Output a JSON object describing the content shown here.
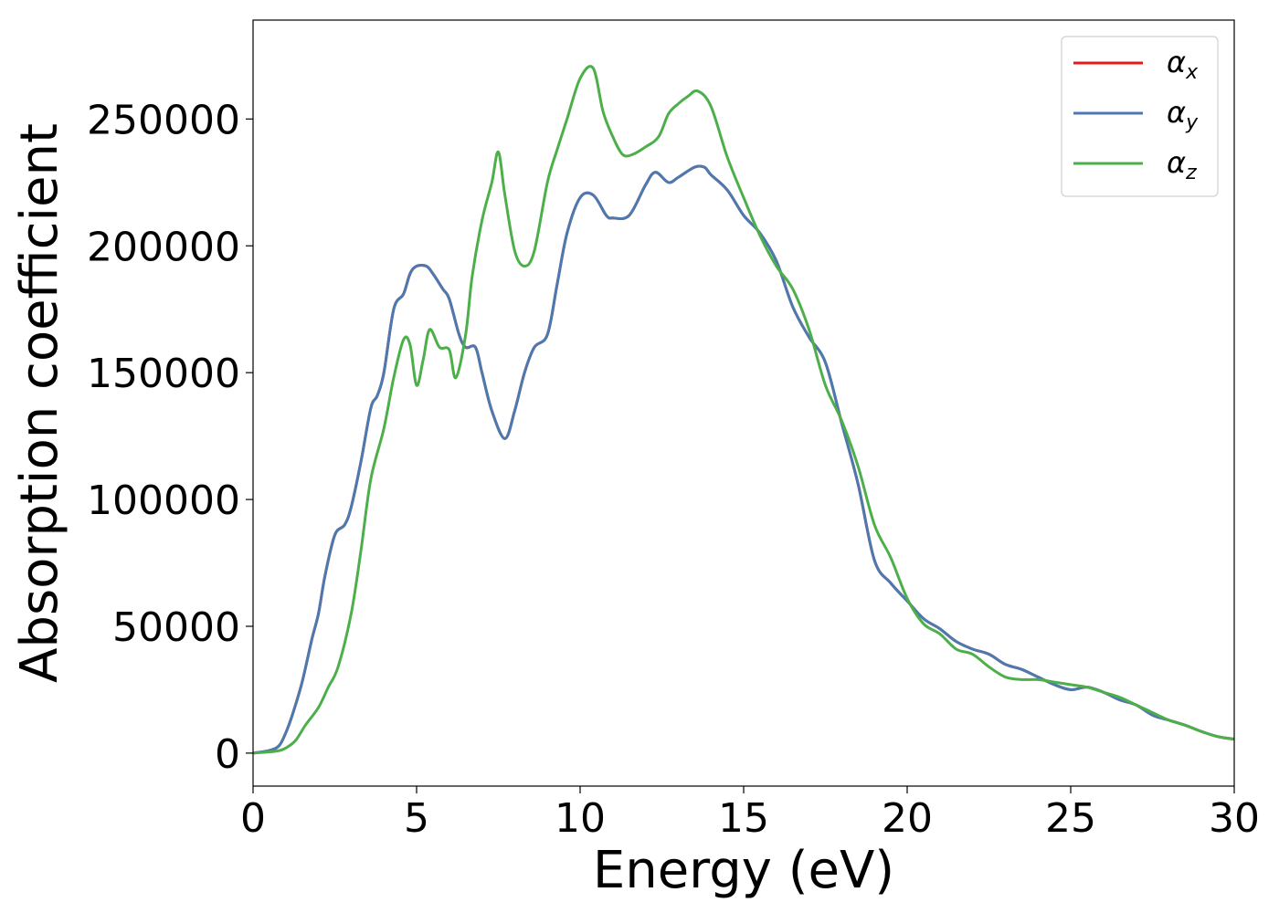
{
  "chart_data": {
    "type": "line",
    "title": "",
    "xlabel": "Energy (eV)",
    "ylabel": "Absorption coefficient",
    "xlim": [
      0,
      30
    ],
    "ylim": [
      -13000,
      289000
    ],
    "xticks": [
      0,
      5,
      10,
      15,
      20,
      25,
      30
    ],
    "xtick_labels": [
      "0",
      "5",
      "10",
      "15",
      "20",
      "25",
      "30"
    ],
    "yticks": [
      0,
      50000,
      100000,
      150000,
      200000,
      250000
    ],
    "ytick_labels": [
      "0",
      "50000",
      "100000",
      "150000",
      "200000",
      "250000"
    ],
    "grid": false,
    "legend_position": "top-right",
    "series": [
      {
        "name": "α",
        "subscript": "x",
        "color": "#e41a1c",
        "x": [
          0,
          0.5,
          0.8,
          1.0,
          1.2,
          1.5,
          1.8,
          2.0,
          2.2,
          2.5,
          2.8,
          3.0,
          3.3,
          3.6,
          3.8,
          4.0,
          4.3,
          4.6,
          4.8,
          5.0,
          5.3,
          5.5,
          5.8,
          6.0,
          6.3,
          6.5,
          6.8,
          7.0,
          7.3,
          7.7,
          8.0,
          8.3,
          8.6,
          9.0,
          9.3,
          9.6,
          10.0,
          10.4,
          10.8,
          11.0,
          11.5,
          12.0,
          12.3,
          12.7,
          13.0,
          13.5,
          13.8,
          14.0,
          14.5,
          15.0,
          15.5,
          16.0,
          16.5,
          17.0,
          17.5,
          18.0,
          18.5,
          19.0,
          19.5,
          20.0,
          20.5,
          21.0,
          21.5,
          22.0,
          22.5,
          23.0,
          23.5,
          24.0,
          24.5,
          25.0,
          25.5,
          26.0,
          26.5,
          27.0,
          27.5,
          28.0,
          28.5,
          29.0,
          29.5,
          30.0
        ],
        "y": [
          0,
          1000,
          3000,
          8000,
          15000,
          28000,
          45000,
          55000,
          70000,
          86000,
          90000,
          97000,
          115000,
          136000,
          141000,
          150000,
          175000,
          181000,
          189000,
          192000,
          192000,
          189000,
          183000,
          179000,
          165000,
          160000,
          160000,
          150000,
          135000,
          124000,
          135000,
          150000,
          160000,
          165000,
          185000,
          205000,
          219000,
          220000,
          212000,
          211000,
          212000,
          224000,
          229000,
          225000,
          227000,
          231000,
          231000,
          228000,
          222000,
          212000,
          205000,
          194000,
          176000,
          164000,
          154000,
          130000,
          106000,
          76000,
          67000,
          60000,
          53000,
          49000,
          44000,
          41000,
          39000,
          35000,
          33000,
          30000,
          27000,
          25000,
          26000,
          24000,
          21000,
          19000,
          15000,
          13000,
          11000,
          8500,
          6500,
          5500
        ]
      },
      {
        "name": "α",
        "subscript": "y",
        "color": "#4a7ab0",
        "x": [
          0,
          0.5,
          0.8,
          1.0,
          1.2,
          1.5,
          1.8,
          2.0,
          2.2,
          2.5,
          2.8,
          3.0,
          3.3,
          3.6,
          3.8,
          4.0,
          4.3,
          4.6,
          4.8,
          5.0,
          5.3,
          5.5,
          5.8,
          6.0,
          6.3,
          6.5,
          6.8,
          7.0,
          7.3,
          7.7,
          8.0,
          8.3,
          8.6,
          9.0,
          9.3,
          9.6,
          10.0,
          10.4,
          10.8,
          11.0,
          11.5,
          12.0,
          12.3,
          12.7,
          13.0,
          13.5,
          13.8,
          14.0,
          14.5,
          15.0,
          15.5,
          16.0,
          16.5,
          17.0,
          17.5,
          18.0,
          18.5,
          19.0,
          19.5,
          20.0,
          20.5,
          21.0,
          21.5,
          22.0,
          22.5,
          23.0,
          23.5,
          24.0,
          24.5,
          25.0,
          25.5,
          26.0,
          26.5,
          27.0,
          27.5,
          28.0,
          28.5,
          29.0,
          29.5,
          30.0
        ],
        "y": [
          0,
          1000,
          3000,
          8000,
          15000,
          28000,
          45000,
          55000,
          70000,
          86000,
          90000,
          97000,
          115000,
          136000,
          141000,
          150000,
          175000,
          181000,
          189000,
          192000,
          192000,
          189000,
          183000,
          179000,
          165000,
          160000,
          160000,
          150000,
          135000,
          124000,
          135000,
          150000,
          160000,
          165000,
          185000,
          205000,
          219000,
          220000,
          212000,
          211000,
          212000,
          224000,
          229000,
          225000,
          227000,
          231000,
          231000,
          228000,
          222000,
          212000,
          205000,
          194000,
          176000,
          164000,
          154000,
          130000,
          106000,
          76000,
          67000,
          60000,
          53000,
          49000,
          44000,
          41000,
          39000,
          35000,
          33000,
          30000,
          27000,
          25000,
          26000,
          24000,
          21000,
          19000,
          15000,
          13000,
          11000,
          8500,
          6500,
          5500
        ]
      },
      {
        "name": "α",
        "subscript": "z",
        "color": "#4daf4a",
        "x": [
          0,
          0.5,
          0.8,
          1.0,
          1.3,
          1.6,
          2.0,
          2.3,
          2.6,
          3.0,
          3.3,
          3.6,
          4.0,
          4.3,
          4.6,
          4.8,
          5.0,
          5.2,
          5.4,
          5.7,
          6.0,
          6.2,
          6.5,
          6.7,
          7.0,
          7.3,
          7.5,
          7.7,
          8.0,
          8.3,
          8.6,
          9.0,
          9.3,
          9.6,
          10.0,
          10.4,
          10.7,
          11.0,
          11.3,
          11.6,
          12.0,
          12.4,
          12.7,
          13.0,
          13.3,
          13.6,
          14.0,
          14.5,
          15.0,
          15.5,
          16.0,
          16.5,
          17.0,
          17.5,
          18.0,
          18.5,
          19.0,
          19.5,
          20.0,
          20.5,
          21.0,
          21.5,
          22.0,
          22.5,
          23.0,
          23.5,
          24.0,
          24.5,
          25.0,
          25.5,
          26.0,
          26.5,
          27.0,
          27.5,
          28.0,
          28.5,
          29.0,
          29.5,
          30.0
        ],
        "y": [
          0,
          500,
          1000,
          2000,
          5000,
          11000,
          18000,
          26000,
          34000,
          55000,
          80000,
          108000,
          128000,
          148000,
          163000,
          161000,
          145000,
          155000,
          167000,
          160000,
          159000,
          148000,
          165000,
          188000,
          210000,
          225000,
          237000,
          220000,
          198000,
          192000,
          198000,
          225000,
          238000,
          250000,
          266000,
          270000,
          253000,
          243000,
          236000,
          236000,
          239000,
          243000,
          252000,
          256000,
          259000,
          261000,
          255000,
          235000,
          219000,
          204000,
          192000,
          183000,
          167000,
          145000,
          131000,
          113000,
          90000,
          77000,
          61000,
          51000,
          47000,
          41000,
          39000,
          34000,
          30000,
          29000,
          29000,
          28000,
          27000,
          26000,
          24000,
          22000,
          19000,
          16000,
          13000,
          11000,
          8500,
          6500,
          5500
        ]
      }
    ]
  }
}
